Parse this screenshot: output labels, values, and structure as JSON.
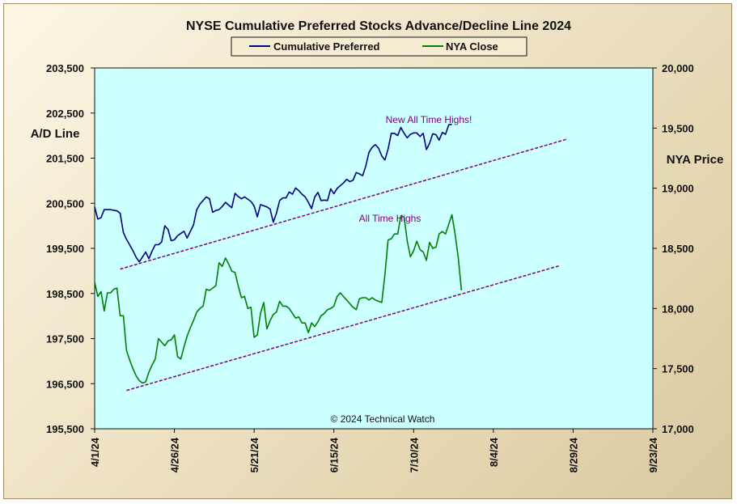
{
  "chart_data": {
    "type": "line",
    "title": "NYSE Cumulative  Preferred Stocks Advance/Decline  Line 2024",
    "ylabel_left": "A/D Line",
    "ylabel_right": "NYA Price",
    "ylim_left": [
      195500,
      203500
    ],
    "ylim_right": [
      17000,
      20000
    ],
    "yticks_left": [
      "195,500",
      "196,500",
      "197,500",
      "198,500",
      "199,500",
      "200,500",
      "201,500",
      "202,500",
      "203,500"
    ],
    "yticks_right": [
      "17,000",
      "17,500",
      "18,000",
      "18,500",
      "19,000",
      "19,500",
      "20,000"
    ],
    "xticks": [
      "4/1/24",
      "4/26/24",
      "5/21/24",
      "6/15/24",
      "7/10/24",
      "8/4/24",
      "8/29/24",
      "9/23/24"
    ],
    "x_domain_days": [
      0,
      175
    ],
    "grid": false,
    "legend_position": "top-center",
    "series": [
      {
        "name": "Cumulative Preferred",
        "axis": "left",
        "color": "#000080",
        "points": [
          [
            0,
            200420
          ],
          [
            1,
            200150
          ],
          [
            2,
            200180
          ],
          [
            3,
            200360
          ],
          [
            5,
            200360
          ],
          [
            7,
            200330
          ],
          [
            8,
            200280
          ],
          [
            9,
            199850
          ],
          [
            10,
            199700
          ],
          [
            12,
            199450
          ],
          [
            13,
            199300
          ],
          [
            14,
            199200
          ],
          [
            16,
            199420
          ],
          [
            17,
            199270
          ],
          [
            18,
            199440
          ],
          [
            19,
            199580
          ],
          [
            20,
            199580
          ],
          [
            21,
            199640
          ],
          [
            22,
            200000
          ],
          [
            23,
            199920
          ],
          [
            24,
            199670
          ],
          [
            25,
            199690
          ],
          [
            26,
            199780
          ],
          [
            28,
            199880
          ],
          [
            29,
            199730
          ],
          [
            31,
            200020
          ],
          [
            32,
            200360
          ],
          [
            33,
            200480
          ],
          [
            35,
            200640
          ],
          [
            36,
            200600
          ],
          [
            37,
            200300
          ],
          [
            38,
            200340
          ],
          [
            39,
            200360
          ],
          [
            40,
            200430
          ],
          [
            41,
            200520
          ],
          [
            42,
            200460
          ],
          [
            43,
            200400
          ],
          [
            44,
            200720
          ],
          [
            45,
            200650
          ],
          [
            46,
            200600
          ],
          [
            47,
            200640
          ],
          [
            49,
            200540
          ],
          [
            50,
            200440
          ],
          [
            51,
            200200
          ],
          [
            52,
            200470
          ],
          [
            54,
            200420
          ],
          [
            55,
            200370
          ],
          [
            56,
            200080
          ],
          [
            57,
            200280
          ],
          [
            58,
            200560
          ],
          [
            59,
            200620
          ],
          [
            60,
            200620
          ],
          [
            61,
            200750
          ],
          [
            62,
            200700
          ],
          [
            63,
            200840
          ],
          [
            64,
            200780
          ],
          [
            65,
            200700
          ],
          [
            66,
            200640
          ],
          [
            67,
            200520
          ],
          [
            68,
            200380
          ],
          [
            69,
            200640
          ],
          [
            70,
            200740
          ],
          [
            71,
            200560
          ],
          [
            72,
            200570
          ],
          [
            73,
            200560
          ],
          [
            74,
            200820
          ],
          [
            75,
            200710
          ],
          [
            76,
            200830
          ],
          [
            77,
            200890
          ],
          [
            78,
            200950
          ],
          [
            79,
            201030
          ],
          [
            80,
            200980
          ],
          [
            81,
            201010
          ],
          [
            82,
            201180
          ],
          [
            83,
            201150
          ],
          [
            84,
            201110
          ],
          [
            85,
            201320
          ],
          [
            86,
            201630
          ],
          [
            87,
            201740
          ],
          [
            88,
            201800
          ],
          [
            89,
            201720
          ],
          [
            90,
            201550
          ],
          [
            91,
            201460
          ],
          [
            92,
            201700
          ],
          [
            93,
            202050
          ],
          [
            94,
            202050
          ],
          [
            95,
            202000
          ],
          [
            96,
            202180
          ],
          [
            97,
            202050
          ],
          [
            98,
            201950
          ],
          [
            99,
            202030
          ],
          [
            100,
            202060
          ],
          [
            101,
            202060
          ],
          [
            102,
            201980
          ],
          [
            103,
            202050
          ],
          [
            104,
            201690
          ],
          [
            105,
            201830
          ],
          [
            106,
            202040
          ],
          [
            107,
            202020
          ],
          [
            108,
            201900
          ],
          [
            109,
            202070
          ],
          [
            110,
            202030
          ],
          [
            111,
            202240
          ],
          [
            112,
            202250
          ]
        ]
      },
      {
        "name": "NYA Close",
        "axis": "right",
        "color": "#008000",
        "points": [
          [
            0,
            18220
          ],
          [
            1,
            18100
          ],
          [
            2,
            18140
          ],
          [
            3,
            17980
          ],
          [
            4,
            18130
          ],
          [
            5,
            18130
          ],
          [
            6,
            18160
          ],
          [
            7,
            18170
          ],
          [
            8,
            17940
          ],
          [
            9,
            17940
          ],
          [
            10,
            17650
          ],
          [
            11,
            17570
          ],
          [
            12,
            17500
          ],
          [
            13,
            17440
          ],
          [
            14,
            17400
          ],
          [
            15,
            17380
          ],
          [
            16,
            17390
          ],
          [
            17,
            17470
          ],
          [
            18,
            17530
          ],
          [
            19,
            17580
          ],
          [
            20,
            17750
          ],
          [
            21,
            17720
          ],
          [
            22,
            17690
          ],
          [
            23,
            17730
          ],
          [
            24,
            17740
          ],
          [
            25,
            17780
          ],
          [
            26,
            17600
          ],
          [
            27,
            17580
          ],
          [
            28,
            17680
          ],
          [
            29,
            17770
          ],
          [
            30,
            17840
          ],
          [
            31,
            17900
          ],
          [
            32,
            17970
          ],
          [
            33,
            18000
          ],
          [
            34,
            18020
          ],
          [
            35,
            18160
          ],
          [
            36,
            18150
          ],
          [
            37,
            18170
          ],
          [
            38,
            18190
          ],
          [
            39,
            18380
          ],
          [
            40,
            18350
          ],
          [
            41,
            18420
          ],
          [
            42,
            18370
          ],
          [
            43,
            18310
          ],
          [
            44,
            18300
          ],
          [
            45,
            18190
          ],
          [
            46,
            18090
          ],
          [
            47,
            18100
          ],
          [
            48,
            18000
          ],
          [
            49,
            18010
          ],
          [
            50,
            17760
          ],
          [
            51,
            17780
          ],
          [
            52,
            17960
          ],
          [
            53,
            18050
          ],
          [
            54,
            17830
          ],
          [
            55,
            17900
          ],
          [
            56,
            17950
          ],
          [
            57,
            17970
          ],
          [
            58,
            18060
          ],
          [
            59,
            18020
          ],
          [
            60,
            18020
          ],
          [
            61,
            18000
          ],
          [
            62,
            17960
          ],
          [
            63,
            17920
          ],
          [
            64,
            17930
          ],
          [
            65,
            17880
          ],
          [
            66,
            17880
          ],
          [
            67,
            17800
          ],
          [
            68,
            17880
          ],
          [
            69,
            17850
          ],
          [
            70,
            17890
          ],
          [
            71,
            17940
          ],
          [
            72,
            17960
          ],
          [
            73,
            17990
          ],
          [
            74,
            18000
          ],
          [
            75,
            18020
          ],
          [
            76,
            18100
          ],
          [
            77,
            18130
          ],
          [
            78,
            18100
          ],
          [
            79,
            18070
          ],
          [
            80,
            18040
          ],
          [
            81,
            18010
          ],
          [
            82,
            17990
          ],
          [
            83,
            18080
          ],
          [
            84,
            18090
          ],
          [
            85,
            18090
          ],
          [
            86,
            18070
          ],
          [
            87,
            18090
          ],
          [
            88,
            18070
          ],
          [
            89,
            18060
          ],
          [
            90,
            18050
          ],
          [
            91,
            18280
          ],
          [
            92,
            18570
          ],
          [
            93,
            18580
          ],
          [
            94,
            18620
          ],
          [
            95,
            18620
          ],
          [
            96,
            18770
          ],
          [
            97,
            18760
          ],
          [
            98,
            18560
          ],
          [
            99,
            18430
          ],
          [
            100,
            18480
          ],
          [
            101,
            18560
          ],
          [
            102,
            18490
          ],
          [
            103,
            18470
          ],
          [
            104,
            18400
          ],
          [
            105,
            18550
          ],
          [
            106,
            18500
          ],
          [
            107,
            18510
          ],
          [
            108,
            18620
          ],
          [
            109,
            18640
          ],
          [
            110,
            18620
          ],
          [
            111,
            18700
          ],
          [
            112,
            18780
          ],
          [
            113,
            18620
          ],
          [
            114,
            18420
          ],
          [
            115,
            18150
          ]
        ]
      }
    ],
    "trendlines": [
      {
        "axis": "left",
        "color": "#800080",
        "from": [
          8,
          199040
        ],
        "to": [
          148,
          201920
        ]
      },
      {
        "axis": "left",
        "color": "#800080",
        "from": [
          10,
          196350
        ],
        "to": [
          146,
          199120
        ]
      }
    ],
    "annotations": [
      {
        "text": "New All Time Highs!",
        "color": "#800080"
      },
      {
        "text": "All Time  Highs",
        "color": "#800080"
      },
      {
        "text": "© 2024 Technical Watch",
        "color": "#111111"
      }
    ]
  }
}
